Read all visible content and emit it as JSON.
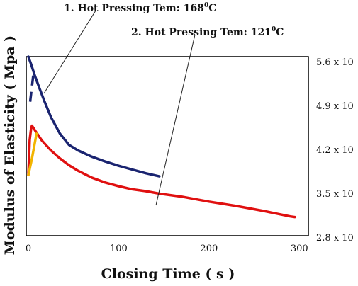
{
  "chart_data": {
    "type": "line",
    "xlabel": "Closing Time ( s )",
    "ylabel": "Modulus of Elasticity ( Mpa )",
    "xlim": [
      0,
      300
    ],
    "ylim": [
      2.8,
      5.6
    ],
    "x_ticks": [
      "0",
      "100",
      "200",
      "300"
    ],
    "x_tick_values": [
      0,
      100,
      200,
      300
    ],
    "right_ticks": [
      "5.6 x 10",
      "4.9 x 10",
      "4.2 x 10",
      "3.5 x 10",
      "2.8 x 10"
    ],
    "right_tick_values": [
      5.6,
      4.9,
      4.2,
      3.5,
      2.8
    ],
    "annotations": [
      {
        "base": "1. Hot Pressing Tem: 168",
        "sup": "0",
        "unit": "C"
      },
      {
        "base": "2. Hot Pressing Tem: 121",
        "sup": "0",
        "unit": "C"
      }
    ],
    "series": [
      {
        "color": "#1a2470",
        "points": [
          [
            0,
            5.6
          ],
          [
            3,
            5.48
          ],
          [
            7,
            5.3
          ],
          [
            12,
            5.1
          ],
          [
            18,
            4.87
          ],
          [
            25,
            4.62
          ],
          [
            35,
            4.35
          ],
          [
            45,
            4.17
          ],
          [
            55,
            4.08
          ],
          [
            70,
            3.98
          ],
          [
            85,
            3.9
          ],
          [
            100,
            3.83
          ],
          [
            115,
            3.77
          ],
          [
            130,
            3.71
          ],
          [
            145,
            3.66
          ]
        ],
        "dashed_segment": [
          [
            2,
            4.87
          ],
          [
            6,
            5.37
          ]
        ]
      },
      {
        "color": "#e01010",
        "points": [
          [
            0,
            3.68
          ],
          [
            1.5,
            4.25
          ],
          [
            3,
            4.43
          ],
          [
            4,
            4.48
          ],
          [
            8,
            4.39
          ],
          [
            15,
            4.24
          ],
          [
            25,
            4.08
          ],
          [
            35,
            3.95
          ],
          [
            45,
            3.84
          ],
          [
            55,
            3.75
          ],
          [
            70,
            3.64
          ],
          [
            85,
            3.56
          ],
          [
            100,
            3.5
          ],
          [
            115,
            3.45
          ],
          [
            130,
            3.42
          ],
          [
            145,
            3.38
          ],
          [
            170,
            3.33
          ],
          [
            200,
            3.25
          ],
          [
            230,
            3.18
          ],
          [
            260,
            3.1
          ],
          [
            290,
            3.01
          ],
          [
            295,
            3.0
          ]
        ]
      },
      {
        "color": "#f2b400",
        "points": [
          [
            0,
            3.68
          ],
          [
            4,
            3.95
          ],
          [
            9,
            4.35
          ]
        ]
      }
    ]
  }
}
